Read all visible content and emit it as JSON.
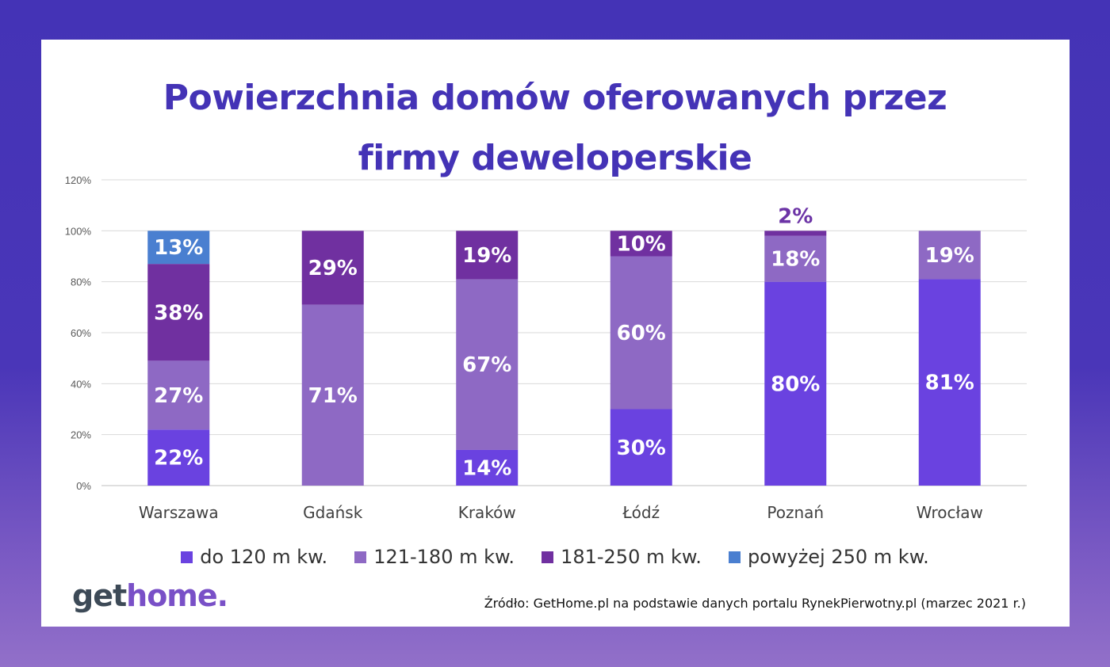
{
  "title_lines": [
    "Powierzchnia domów oferowanych przez",
    "firmy deweloperskie"
  ],
  "source": "Źródło: GetHome.pl  na podstawie danych portalu RynekPierwotny.pl (marzec 2021 r.)",
  "logo": {
    "part1": "get",
    "part2": "home."
  },
  "colors": {
    "background": "#4433b6",
    "title": "#4433b6",
    "grid": "#d9d9d9",
    "outside_label": "#6c34a6"
  },
  "chart_data": {
    "type": "bar",
    "stacked": true,
    "categories": [
      "Warszawa",
      "Gdańsk",
      "Kraków",
      "Łódź",
      "Poznań",
      "Wrocław"
    ],
    "series": [
      {
        "name": "do 120 m kw.",
        "color": "#6a42e0",
        "values": [
          22,
          0,
          14,
          30,
          80,
          81
        ]
      },
      {
        "name": "121-180 m kw.",
        "color": "#8e69c4",
        "values": [
          27,
          71,
          67,
          60,
          18,
          19
        ]
      },
      {
        "name": "181-250 m kw.",
        "color": "#7030a0",
        "values": [
          38,
          29,
          19,
          10,
          2,
          0
        ]
      },
      {
        "name": "powyżej 250 m kw.",
        "color": "#4a7fd0",
        "values": [
          13,
          0,
          0,
          0,
          0,
          0
        ]
      }
    ],
    "data_labels": [
      [
        "22%",
        "",
        "14%",
        "30%",
        "80%",
        "81%"
      ],
      [
        "27%",
        "71%",
        "67%",
        "60%",
        "18%",
        "19%"
      ],
      [
        "38%",
        "29%",
        "19%",
        "10%",
        "2%",
        ""
      ],
      [
        "13%",
        "",
        "",
        "",
        "",
        ""
      ]
    ],
    "y_ticks": [
      "0%",
      "20%",
      "40%",
      "60%",
      "80%",
      "100%",
      "120%"
    ],
    "ylim": [
      0,
      120
    ],
    "grid": true,
    "legend_position": "bottom"
  }
}
